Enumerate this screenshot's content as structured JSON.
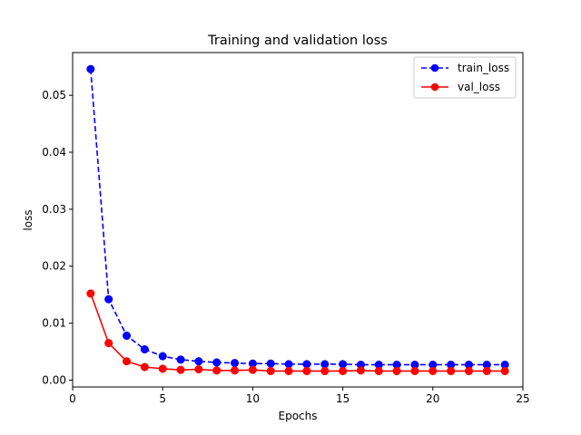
{
  "chart_data": {
    "type": "line",
    "title": "Training and validation loss",
    "xlabel": "Epochs",
    "ylabel": "loss",
    "xlim": [
      0,
      25
    ],
    "ylim": [
      -0.0012,
      0.0575
    ],
    "xticks": [
      0,
      5,
      10,
      15,
      20,
      25
    ],
    "yticks": [
      0.0,
      0.01,
      0.02,
      0.03,
      0.04,
      0.05
    ],
    "ytick_labels": [
      "0.00",
      "0.01",
      "0.02",
      "0.03",
      "0.04",
      "0.05"
    ],
    "grid": false,
    "legend_position": "top-right",
    "x": [
      1,
      2,
      3,
      4,
      5,
      6,
      7,
      8,
      9,
      10,
      11,
      12,
      13,
      14,
      15,
      16,
      17,
      18,
      19,
      20,
      21,
      22,
      23,
      24
    ],
    "series": [
      {
        "name": "train_loss",
        "color": "#0000ff",
        "linestyle": "dashed",
        "marker": "circle",
        "values": [
          0.0546,
          0.0142,
          0.0078,
          0.0054,
          0.0042,
          0.0036,
          0.0033,
          0.0031,
          0.003,
          0.0029,
          0.0029,
          0.0028,
          0.0028,
          0.0028,
          0.0028,
          0.0027,
          0.0027,
          0.0027,
          0.0027,
          0.0027,
          0.0027,
          0.0027,
          0.0027,
          0.0027
        ]
      },
      {
        "name": "val_loss",
        "color": "#ff0000",
        "linestyle": "solid",
        "marker": "circle",
        "values": [
          0.0152,
          0.0065,
          0.0033,
          0.0023,
          0.002,
          0.0018,
          0.0019,
          0.0017,
          0.0017,
          0.0018,
          0.0016,
          0.0016,
          0.0016,
          0.0016,
          0.0016,
          0.0017,
          0.0016,
          0.0016,
          0.0016,
          0.0016,
          0.0016,
          0.0016,
          0.0016,
          0.0016
        ]
      }
    ]
  }
}
